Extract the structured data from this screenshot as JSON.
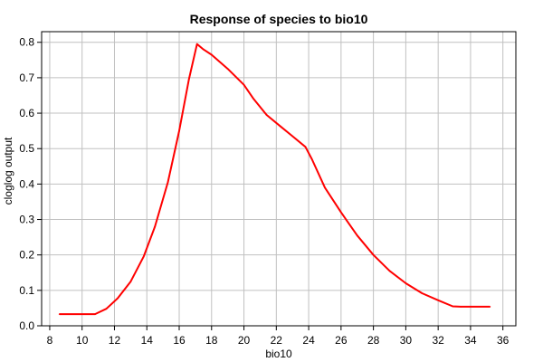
{
  "chart_data": {
    "type": "line",
    "title": "Response of species to bio10",
    "xlabel": "bio10",
    "ylabel": "cloglog output",
    "xlim": [
      7.5,
      36.8
    ],
    "ylim": [
      0,
      0.83
    ],
    "xticks": [
      8,
      10,
      12,
      14,
      16,
      18,
      20,
      22,
      24,
      26,
      28,
      30,
      32,
      34,
      36
    ],
    "yticks": [
      0.0,
      0.1,
      0.2,
      0.3,
      0.4,
      0.5,
      0.6,
      0.7,
      0.8
    ],
    "grid": true,
    "series": [
      {
        "color": "#ff0000",
        "x": [
          8.6,
          10.8,
          11.5,
          12.2,
          13.0,
          13.8,
          14.5,
          15.3,
          16.0,
          16.6,
          17.1,
          17.5,
          18.0,
          19.0,
          20.0,
          20.6,
          21.4,
          22.2,
          23.0,
          23.8,
          24.2,
          25.0,
          26.0,
          27.0,
          28.0,
          29.0,
          30.0,
          31.0,
          32.0,
          32.9,
          33.4,
          35.2
        ],
        "y": [
          0.033,
          0.033,
          0.048,
          0.078,
          0.125,
          0.195,
          0.28,
          0.405,
          0.55,
          0.695,
          0.795,
          0.78,
          0.765,
          0.725,
          0.68,
          0.64,
          0.595,
          0.565,
          0.535,
          0.505,
          0.47,
          0.39,
          0.32,
          0.255,
          0.2,
          0.155,
          0.12,
          0.092,
          0.072,
          0.055,
          0.054,
          0.054
        ]
      }
    ]
  }
}
